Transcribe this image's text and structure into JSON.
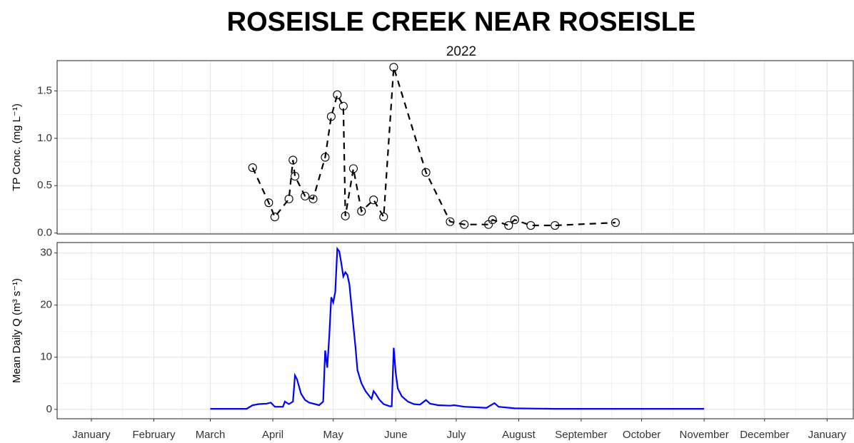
{
  "chart_data": [
    {
      "type": "line",
      "title": "ROSEISLE CREEK NEAR ROSEISLE",
      "subtitle": "2022",
      "y_label": "TP Conc. (mg L⁻¹)",
      "x": [
        80,
        88,
        91,
        98,
        100,
        101,
        106,
        110,
        116,
        119,
        122,
        125,
        126,
        130,
        134,
        140,
        145,
        150,
        166,
        178,
        185,
        197,
        199,
        207,
        210,
        218,
        230,
        260
      ],
      "series": [
        {
          "name": "TP",
          "color": "#000000",
          "marker": "open-circle",
          "dashed": true,
          "values": [
            0.69,
            0.32,
            0.17,
            0.36,
            0.77,
            0.6,
            0.39,
            0.36,
            0.8,
            1.23,
            1.46,
            1.34,
            0.18,
            0.68,
            0.23,
            0.35,
            0.17,
            1.75,
            0.64,
            0.12,
            0.09,
            0.09,
            0.14,
            0.08,
            0.14,
            0.08,
            0.08,
            0.11
          ]
        }
      ],
      "xlim": [
        -17,
        378
      ],
      "ylim": [
        -0.01,
        1.82
      ],
      "yticks": [
        {
          "value": 0,
          "label": "0.0"
        },
        0.5,
        {
          "value": 1,
          "label": "1.0"
        },
        1.5
      ],
      "grid": true
    },
    {
      "type": "line",
      "y_label": "Mean Daily Q (m³ s⁻¹)",
      "x": [
        59,
        77,
        80,
        83,
        87,
        89,
        91,
        95,
        96,
        98,
        100,
        101,
        102,
        104,
        106,
        108,
        111,
        113,
        115,
        116,
        117,
        118,
        119,
        120,
        121,
        122,
        123,
        124,
        125,
        126,
        127,
        128,
        129,
        130,
        131,
        132,
        134,
        136,
        138,
        139,
        140,
        141,
        143,
        145,
        148,
        149,
        150,
        151,
        152,
        154,
        157,
        160,
        163,
        166,
        168,
        172,
        178,
        180,
        185,
        190,
        196,
        200,
        202,
        210,
        230,
        260,
        304
      ],
      "series": [
        {
          "name": "Q",
          "color": "#0000ff",
          "values": [
            0.1,
            0.1,
            0.8,
            1.0,
            1.1,
            1.3,
            0.5,
            0.5,
            1.5,
            1.0,
            1.5,
            6.5,
            5.8,
            3,
            1.8,
            1.3,
            1.0,
            0.8,
            1.5,
            11.3,
            8,
            14,
            21.5,
            20.5,
            22.5,
            30.8,
            30.3,
            28,
            25.5,
            26.3,
            25.8,
            24,
            20,
            16,
            12,
            7.5,
            5,
            3.5,
            2.5,
            2.0,
            3.5,
            3,
            1.8,
            1.0,
            0.6,
            0.6,
            11.8,
            7,
            4,
            2.5,
            1.5,
            1.0,
            0.9,
            1.8,
            1.1,
            0.8,
            0.7,
            0.8,
            0.5,
            0.4,
            0.3,
            1.2,
            0.5,
            0.2,
            0.1,
            0.1,
            0.1
          ]
        }
      ],
      "xlim": [
        -17,
        378
      ],
      "xticks": [
        {
          "value": 0,
          "label": "January"
        },
        {
          "value": 31,
          "label": "February"
        },
        {
          "value": 59,
          "label": "March"
        },
        {
          "value": 90,
          "label": "April"
        },
        {
          "value": 120,
          "label": "May"
        },
        {
          "value": 151,
          "label": "June"
        },
        {
          "value": 181,
          "label": "July"
        },
        {
          "value": 212,
          "label": "August"
        },
        {
          "value": 243,
          "label": "September"
        },
        {
          "value": 273,
          "label": "October"
        },
        {
          "value": 304,
          "label": "November"
        },
        {
          "value": 334,
          "label": "December"
        },
        {
          "value": 365,
          "label": "January"
        }
      ],
      "ylim": [
        -1.8,
        32
      ],
      "yticks": [
        0,
        10,
        20,
        30
      ],
      "grid": true
    }
  ]
}
